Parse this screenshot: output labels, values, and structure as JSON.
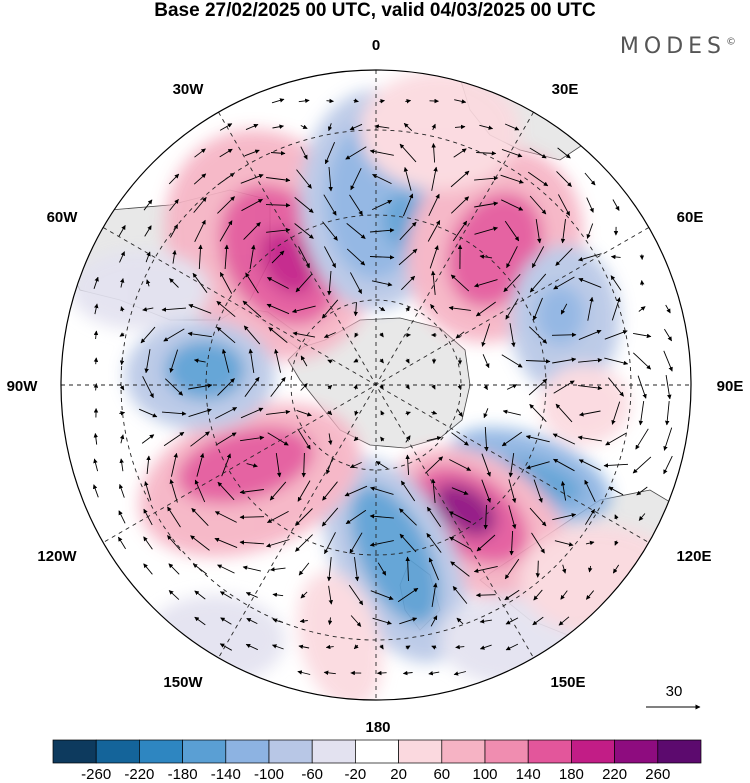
{
  "title": "Base 27/02/2025 00 UTC, valid 04/03/2025 00 UTC",
  "brand": "MODES",
  "brand_mark": "©",
  "map": {
    "projection": "south-polar-stereographic",
    "longitude_labels": {
      "top": "0",
      "bottom": "180",
      "left": "90W",
      "right": "90E",
      "upper_left_inner": "30W",
      "upper_right_inner": "30E",
      "upper_left_outer": "60W",
      "upper_right_outer": "60E",
      "lower_left_outer": "120W",
      "lower_right_outer": "120E",
      "lower_left_inner": "150W",
      "lower_right_inner": "150E"
    },
    "vector_scale": "30",
    "colors": {
      "land": "#e8e8e8",
      "coast": "#444444",
      "grid": "#222222"
    }
  },
  "colorbar": {
    "ticks": [
      "-260",
      "-220",
      "-180",
      "-140",
      "-100",
      "-60",
      "-20",
      "20",
      "60",
      "100",
      "140",
      "180",
      "220",
      "260"
    ],
    "colors": [
      "#0d3a5e",
      "#14649a",
      "#2e86c1",
      "#5a9fd4",
      "#8db3e2",
      "#b8c7e6",
      "#e3e2f0",
      "#ffffff",
      "#fbd9df",
      "#f6b3c4",
      "#f08db0",
      "#e3569b",
      "#c21d86",
      "#8e0c7f",
      "#5c0a6e"
    ]
  }
}
